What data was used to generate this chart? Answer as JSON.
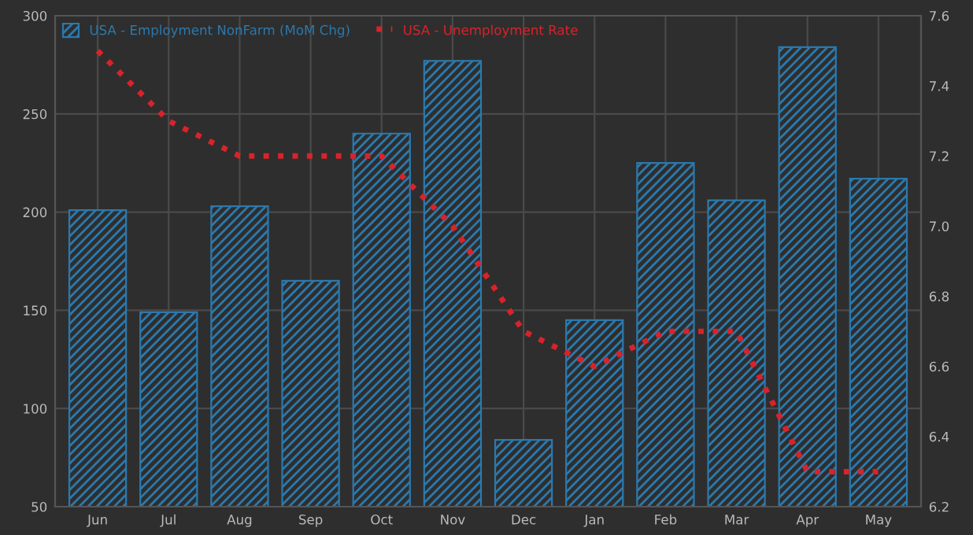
{
  "chart_data": {
    "type": "bar",
    "categories": [
      "Jun",
      "Jul",
      "Aug",
      "Sep",
      "Oct",
      "Nov",
      "Dec",
      "Jan",
      "Feb",
      "Mar",
      "Apr",
      "May"
    ],
    "series": [
      {
        "name": "USA - Employment NonFarm (MoM Chg)",
        "color": "#2b79ad",
        "values": [
          201,
          149,
          203,
          165,
          240,
          277,
          84,
          145,
          225,
          206,
          284,
          217
        ]
      },
      {
        "name": "USA - Unemployment Rate",
        "type": "line",
        "axis": "y2",
        "color": "#d8232a",
        "line_style": "dotted",
        "values": [
          7.5,
          7.3,
          7.2,
          7.2,
          7.2,
          7.0,
          6.7,
          6.6,
          6.7,
          6.7,
          6.3,
          6.3
        ]
      }
    ],
    "ylim": [
      50,
      300
    ],
    "yticks": [
      50,
      100,
      150,
      200,
      250,
      300
    ],
    "y2lim": [
      6.2,
      7.6
    ],
    "y2ticks": [
      {
        "value": 6.2,
        "label": "6.2"
      },
      {
        "value": 6.4,
        "label": "6.4"
      },
      {
        "value": 6.6,
        "label": "6.6"
      },
      {
        "value": 6.8,
        "label": "6.8"
      },
      {
        "value": 7.0,
        "label": "7.0"
      },
      {
        "value": 7.2,
        "label": "7.2"
      },
      {
        "value": 7.4,
        "label": "7.4"
      },
      {
        "value": 7.6,
        "label": "7.6"
      }
    ],
    "grid": true,
    "legend": "top left"
  }
}
